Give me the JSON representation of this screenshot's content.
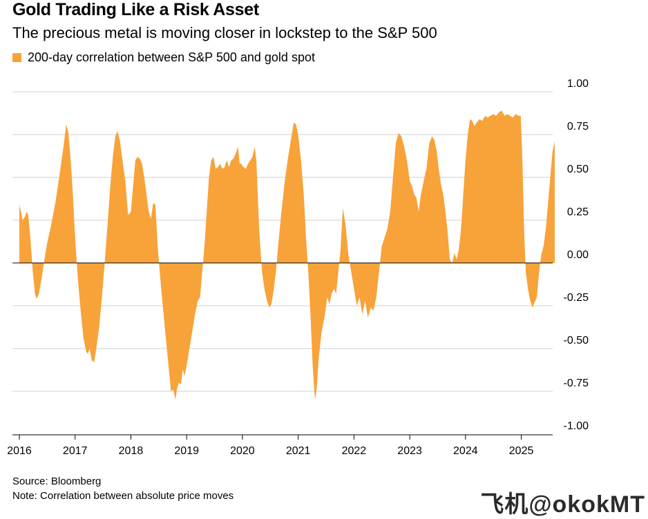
{
  "header": {
    "title": "Gold Trading Like a Risk Asset",
    "subtitle": "The precious metal is moving closer in lockstep to the S&P 500"
  },
  "footer": {
    "source": "Source: Bloomberg",
    "note": "Note: Correlation between absolute price moves"
  },
  "watermark": "飞机@okokMT",
  "chart_data": {
    "type": "area",
    "series": [
      {
        "name": "200-day correlation between S&P 500 and gold spot",
        "color": "#f8a23a"
      }
    ],
    "ylim": [
      -1.0,
      1.0
    ],
    "yticks": [
      "1.00",
      "0.75",
      "0.50",
      "0.25",
      "0.00",
      "-0.25",
      "-0.50",
      "-0.75",
      "-1.00"
    ],
    "xticks": [
      "2016",
      "2017",
      "2018",
      "2019",
      "2020",
      "2021",
      "2022",
      "2023",
      "2024",
      "2025"
    ],
    "grid": true,
    "legend": "top-left",
    "x_range": [
      2015.9,
      2025.95
    ],
    "points": [
      [
        2016.0,
        0.34
      ],
      [
        2016.03,
        0.3
      ],
      [
        2016.06,
        0.25
      ],
      [
        2016.1,
        0.27
      ],
      [
        2016.13,
        0.3
      ],
      [
        2016.16,
        0.28
      ],
      [
        2016.2,
        0.14
      ],
      [
        2016.24,
        -0.05
      ],
      [
        2016.28,
        -0.18
      ],
      [
        2016.31,
        -0.21
      ],
      [
        2016.35,
        -0.18
      ],
      [
        2016.4,
        -0.09
      ],
      [
        2016.45,
        0.02
      ],
      [
        2016.5,
        0.12
      ],
      [
        2016.55,
        0.19
      ],
      [
        2016.6,
        0.27
      ],
      [
        2016.65,
        0.36
      ],
      [
        2016.7,
        0.47
      ],
      [
        2016.75,
        0.58
      ],
      [
        2016.8,
        0.7
      ],
      [
        2016.84,
        0.81
      ],
      [
        2016.88,
        0.76
      ],
      [
        2016.92,
        0.6
      ],
      [
        2016.96,
        0.4
      ],
      [
        2017.0,
        0.15
      ],
      [
        2017.05,
        -0.1
      ],
      [
        2017.1,
        -0.28
      ],
      [
        2017.15,
        -0.44
      ],
      [
        2017.2,
        -0.52
      ],
      [
        2017.23,
        -0.53
      ],
      [
        2017.26,
        -0.5
      ],
      [
        2017.3,
        -0.57
      ],
      [
        2017.34,
        -0.58
      ],
      [
        2017.38,
        -0.5
      ],
      [
        2017.43,
        -0.38
      ],
      [
        2017.48,
        -0.2
      ],
      [
        2017.53,
        0.0
      ],
      [
        2017.58,
        0.22
      ],
      [
        2017.63,
        0.45
      ],
      [
        2017.68,
        0.63
      ],
      [
        2017.72,
        0.74
      ],
      [
        2017.76,
        0.77
      ],
      [
        2017.8,
        0.72
      ],
      [
        2017.85,
        0.6
      ],
      [
        2017.9,
        0.48
      ],
      [
        2017.95,
        0.28
      ],
      [
        2018.0,
        0.3
      ],
      [
        2018.04,
        0.45
      ],
      [
        2018.08,
        0.6
      ],
      [
        2018.12,
        0.62
      ],
      [
        2018.16,
        0.61
      ],
      [
        2018.2,
        0.58
      ],
      [
        2018.24,
        0.5
      ],
      [
        2018.28,
        0.4
      ],
      [
        2018.32,
        0.3
      ],
      [
        2018.36,
        0.26
      ],
      [
        2018.4,
        0.35
      ],
      [
        2018.44,
        0.34
      ],
      [
        2018.48,
        0.1
      ],
      [
        2018.53,
        -0.1
      ],
      [
        2018.58,
        -0.28
      ],
      [
        2018.63,
        -0.45
      ],
      [
        2018.68,
        -0.62
      ],
      [
        2018.72,
        -0.75
      ],
      [
        2018.76,
        -0.74
      ],
      [
        2018.8,
        -0.8
      ],
      [
        2018.83,
        -0.73
      ],
      [
        2018.86,
        -0.7
      ],
      [
        2018.9,
        -0.71
      ],
      [
        2018.93,
        -0.62
      ],
      [
        2018.96,
        -0.66
      ],
      [
        2019.0,
        -0.6
      ],
      [
        2019.05,
        -0.5
      ],
      [
        2019.1,
        -0.4
      ],
      [
        2019.15,
        -0.3
      ],
      [
        2019.2,
        -0.22
      ],
      [
        2019.24,
        -0.2
      ],
      [
        2019.28,
        -0.05
      ],
      [
        2019.32,
        0.1
      ],
      [
        2019.36,
        0.3
      ],
      [
        2019.4,
        0.5
      ],
      [
        2019.44,
        0.6
      ],
      [
        2019.48,
        0.62
      ],
      [
        2019.52,
        0.55
      ],
      [
        2019.56,
        0.56
      ],
      [
        2019.6,
        0.58
      ],
      [
        2019.64,
        0.55
      ],
      [
        2019.68,
        0.56
      ],
      [
        2019.72,
        0.6
      ],
      [
        2019.76,
        0.56
      ],
      [
        2019.8,
        0.6
      ],
      [
        2019.84,
        0.61
      ],
      [
        2019.88,
        0.64
      ],
      [
        2019.92,
        0.68
      ],
      [
        2019.95,
        0.58
      ],
      [
        2019.98,
        0.58
      ],
      [
        2020.02,
        0.56
      ],
      [
        2020.06,
        0.55
      ],
      [
        2020.1,
        0.58
      ],
      [
        2020.14,
        0.6
      ],
      [
        2020.18,
        0.62
      ],
      [
        2020.22,
        0.68
      ],
      [
        2020.25,
        0.6
      ],
      [
        2020.3,
        0.2
      ],
      [
        2020.35,
        -0.05
      ],
      [
        2020.4,
        -0.16
      ],
      [
        2020.44,
        -0.22
      ],
      [
        2020.48,
        -0.26
      ],
      [
        2020.52,
        -0.24
      ],
      [
        2020.56,
        -0.16
      ],
      [
        2020.6,
        -0.05
      ],
      [
        2020.64,
        0.1
      ],
      [
        2020.7,
        0.3
      ],
      [
        2020.76,
        0.48
      ],
      [
        2020.82,
        0.62
      ],
      [
        2020.88,
        0.74
      ],
      [
        2020.92,
        0.82
      ],
      [
        2020.96,
        0.81
      ],
      [
        2021.0,
        0.75
      ],
      [
        2021.05,
        0.6
      ],
      [
        2021.1,
        0.4
      ],
      [
        2021.14,
        0.15
      ],
      [
        2021.18,
        -0.05
      ],
      [
        2021.22,
        -0.3
      ],
      [
        2021.26,
        -0.6
      ],
      [
        2021.3,
        -0.8
      ],
      [
        2021.33,
        -0.74
      ],
      [
        2021.37,
        -0.55
      ],
      [
        2021.42,
        -0.4
      ],
      [
        2021.48,
        -0.3
      ],
      [
        2021.52,
        -0.2
      ],
      [
        2021.56,
        -0.24
      ],
      [
        2021.6,
        -0.18
      ],
      [
        2021.64,
        -0.15
      ],
      [
        2021.68,
        -0.18
      ],
      [
        2021.72,
        -0.05
      ],
      [
        2021.76,
        0.08
      ],
      [
        2021.8,
        0.32
      ],
      [
        2021.85,
        0.22
      ],
      [
        2021.9,
        0.05
      ],
      [
        2021.95,
        -0.05
      ],
      [
        2022.0,
        -0.15
      ],
      [
        2022.05,
        -0.25
      ],
      [
        2022.1,
        -0.2
      ],
      [
        2022.15,
        -0.3
      ],
      [
        2022.2,
        -0.22
      ],
      [
        2022.25,
        -0.32
      ],
      [
        2022.3,
        -0.26
      ],
      [
        2022.35,
        -0.28
      ],
      [
        2022.4,
        -0.2
      ],
      [
        2022.45,
        -0.05
      ],
      [
        2022.5,
        0.1
      ],
      [
        2022.55,
        0.15
      ],
      [
        2022.6,
        0.2
      ],
      [
        2022.65,
        0.3
      ],
      [
        2022.7,
        0.5
      ],
      [
        2022.75,
        0.7
      ],
      [
        2022.8,
        0.76
      ],
      [
        2022.85,
        0.74
      ],
      [
        2022.9,
        0.68
      ],
      [
        2022.95,
        0.6
      ],
      [
        2023.0,
        0.48
      ],
      [
        2023.04,
        0.45
      ],
      [
        2023.08,
        0.4
      ],
      [
        2023.12,
        0.38
      ],
      [
        2023.16,
        0.3
      ],
      [
        2023.2,
        0.4
      ],
      [
        2023.25,
        0.48
      ],
      [
        2023.3,
        0.55
      ],
      [
        2023.35,
        0.7
      ],
      [
        2023.4,
        0.74
      ],
      [
        2023.44,
        0.72
      ],
      [
        2023.48,
        0.66
      ],
      [
        2023.52,
        0.55
      ],
      [
        2023.56,
        0.46
      ],
      [
        2023.6,
        0.4
      ],
      [
        2023.64,
        0.3
      ],
      [
        2023.68,
        0.18
      ],
      [
        2023.72,
        0.02
      ],
      [
        2023.76,
        0.0
      ],
      [
        2023.8,
        0.06
      ],
      [
        2023.84,
        0.02
      ],
      [
        2023.88,
        0.08
      ],
      [
        2023.92,
        0.2
      ],
      [
        2023.96,
        0.4
      ],
      [
        2024.0,
        0.6
      ],
      [
        2024.04,
        0.75
      ],
      [
        2024.08,
        0.84
      ],
      [
        2024.12,
        0.83
      ],
      [
        2024.16,
        0.8
      ],
      [
        2024.2,
        0.82
      ],
      [
        2024.25,
        0.84
      ],
      [
        2024.3,
        0.83
      ],
      [
        2024.35,
        0.86
      ],
      [
        2024.4,
        0.85
      ],
      [
        2024.45,
        0.86
      ],
      [
        2024.5,
        0.87
      ],
      [
        2024.55,
        0.86
      ],
      [
        2024.6,
        0.88
      ],
      [
        2024.65,
        0.89
      ],
      [
        2024.7,
        0.86
      ],
      [
        2024.75,
        0.87
      ],
      [
        2024.8,
        0.86
      ],
      [
        2024.85,
        0.85
      ],
      [
        2024.9,
        0.87
      ],
      [
        2024.95,
        0.86
      ],
      [
        2024.99,
        0.86
      ],
      [
        2025.02,
        0.6
      ],
      [
        2025.05,
        0.2
      ],
      [
        2025.08,
        -0.05
      ],
      [
        2025.12,
        -0.15
      ],
      [
        2025.16,
        -0.22
      ],
      [
        2025.2,
        -0.26
      ],
      [
        2025.24,
        -0.23
      ],
      [
        2025.28,
        -0.2
      ],
      [
        2025.32,
        -0.05
      ],
      [
        2025.36,
        0.05
      ],
      [
        2025.4,
        0.1
      ],
      [
        2025.44,
        0.2
      ],
      [
        2025.48,
        0.35
      ],
      [
        2025.52,
        0.5
      ],
      [
        2025.56,
        0.65
      ],
      [
        2025.6,
        0.71
      ]
    ]
  }
}
